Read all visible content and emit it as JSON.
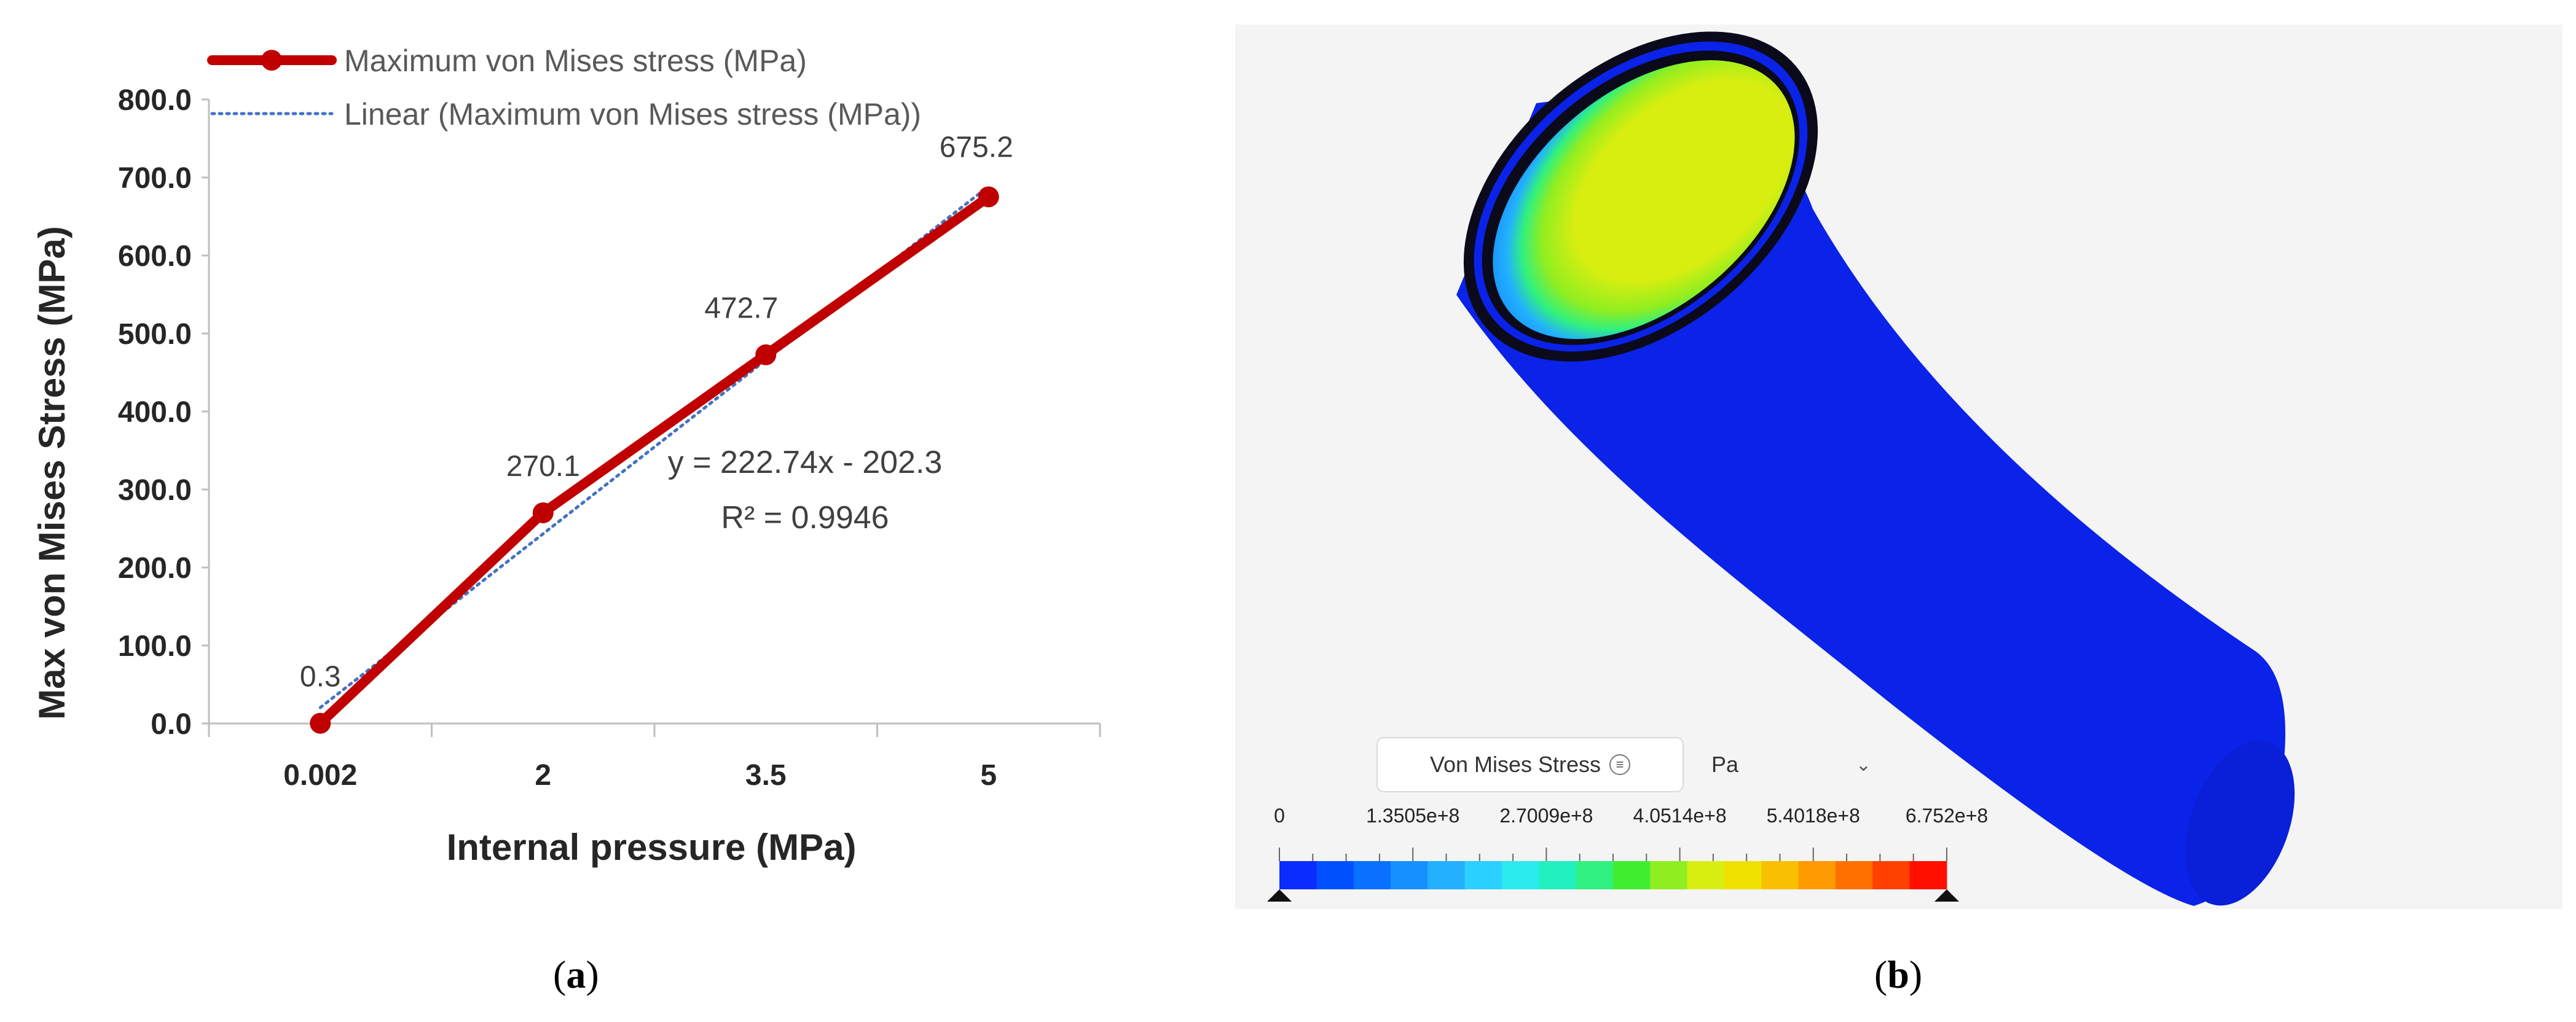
{
  "chart_data": {
    "type": "line",
    "categories": [
      "0.002",
      "2",
      "3.5",
      "5"
    ],
    "series": [
      {
        "name": "Maximum von Mises stress (MPa)",
        "values": [
          0.3,
          270.1,
          472.7,
          675.2
        ],
        "data_labels": [
          "0.3",
          "270.1",
          "472.7",
          "675.2"
        ],
        "color": "#c00000"
      },
      {
        "name": "Linear (Maximum von Mises stress (MPa))",
        "values": [
          20.44,
          243.18,
          465.92,
          688.66
        ],
        "color": "#4472c4",
        "style": "dotted"
      }
    ],
    "xlabel": "Internal pressure (MPa)",
    "ylabel": "Max von Mises Stress (MPa)",
    "ylim": [
      0,
      800
    ],
    "yticks": [
      "0.0",
      "100.0",
      "200.0",
      "300.0",
      "400.0",
      "500.0",
      "600.0",
      "700.0",
      "800.0"
    ],
    "trendline_equation": "y = 222.74x - 202.3",
    "r_squared": "R² = 0.9946",
    "legend_position": "top"
  },
  "simulation": {
    "result_label": "Von Mises Stress",
    "unit": "Pa",
    "colorbar_ticks": [
      "0",
      "1.3505e+8",
      "2.7009e+8",
      "4.0514e+8",
      "5.4018e+8",
      "6.752e+8"
    ],
    "colorbar_colors": [
      "#0a2cff",
      "#0050ff",
      "#0a70ff",
      "#1690ff",
      "#22b0ff",
      "#2ad0ff",
      "#2aeaf0",
      "#22f0c0",
      "#30f080",
      "#40ee30",
      "#90ee20",
      "#d8ee10",
      "#f0e000",
      "#f8c000",
      "#ff9a00",
      "#ff7000",
      "#ff4000",
      "#ff1000"
    ],
    "pipe_color": "#0b22e8",
    "info_icon": "info-icon",
    "dropdown_icon": "chevron-down-icon"
  },
  "captions": {
    "a": "a",
    "b": "b"
  }
}
